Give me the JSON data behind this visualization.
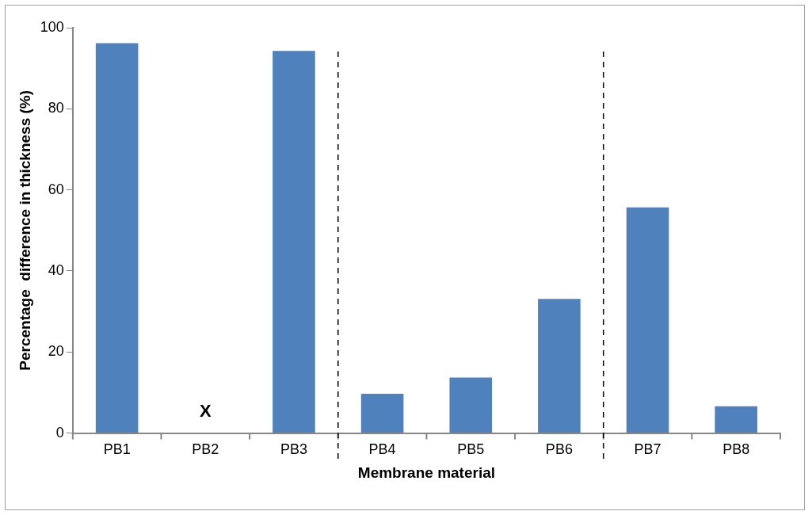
{
  "chart_data": {
    "type": "bar",
    "xlabel": "Membrane material",
    "ylabel": "Percentage  difference in thickness (%)",
    "categories": [
      "PB1",
      "PB2",
      "PB3",
      "PB4",
      "PB5",
      "PB6",
      "PB7",
      "PB8"
    ],
    "values": [
      96.2,
      null,
      94.3,
      9.7,
      13.7,
      33.1,
      55.7,
      6.6
    ],
    "color": "#4f81bd",
    "ylim": [
      0,
      100
    ],
    "yticks": [
      0,
      20,
      40,
      60,
      80,
      100
    ],
    "grid": false,
    "legend": false,
    "annotations": [
      "X"
    ]
  }
}
